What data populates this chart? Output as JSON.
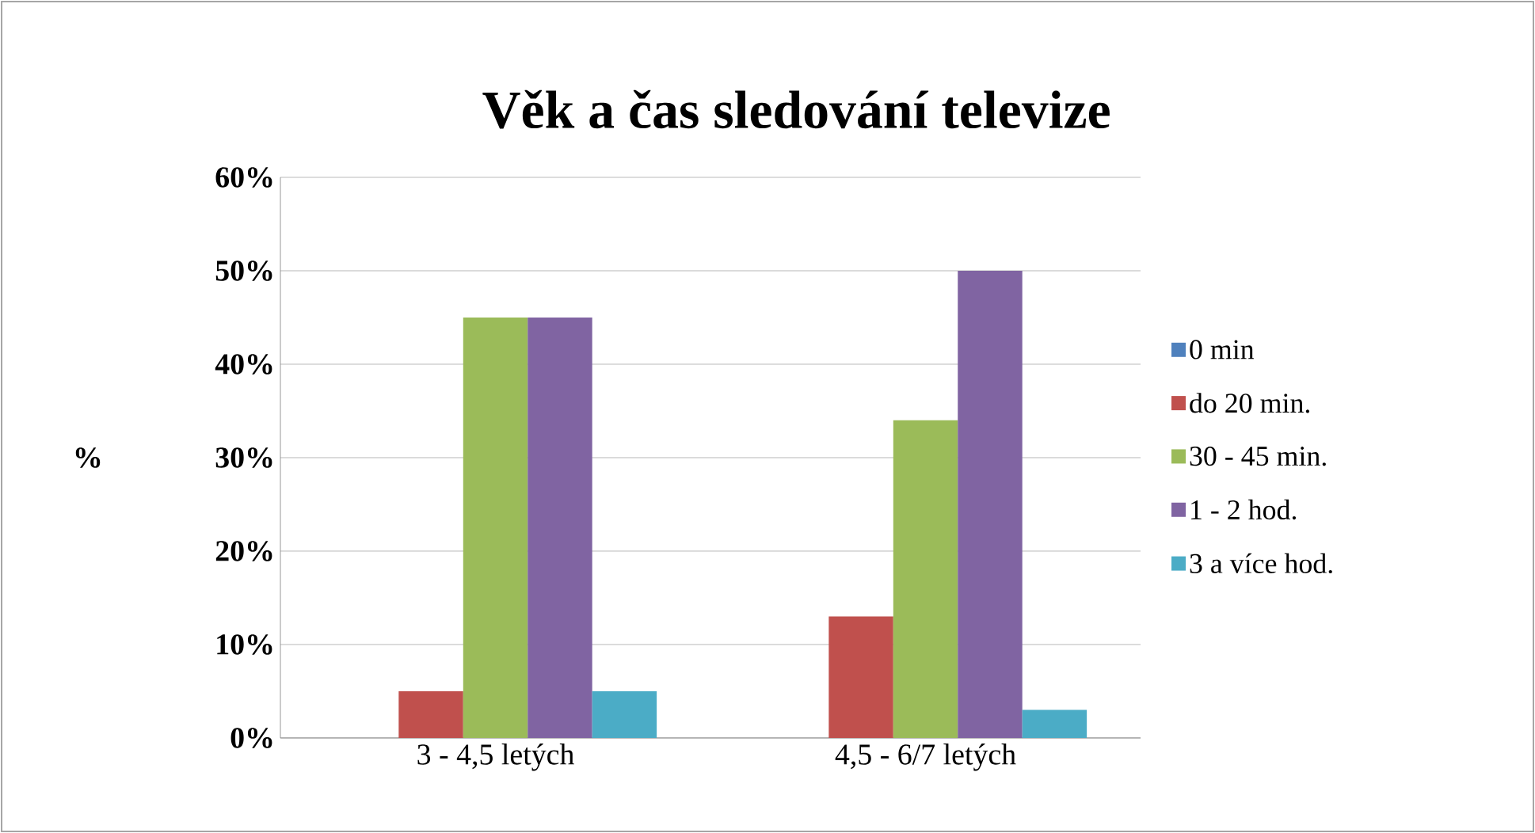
{
  "chart_data": {
    "type": "bar",
    "title": "Věk a čas sledování televize",
    "ylabel": "%",
    "categories": [
      "3 - 4,5 letých",
      "4,5 - 6/7 letých"
    ],
    "series": [
      {
        "name": "0 min",
        "color": "#4f81bd",
        "values": [
          0,
          0
        ]
      },
      {
        "name": "do 20 min.",
        "color": "#c0504d",
        "values": [
          5,
          13
        ]
      },
      {
        "name": "30 - 45 min.",
        "color": "#9bbb59",
        "values": [
          45,
          34
        ]
      },
      {
        "name": "1 - 2 hod.",
        "color": "#8064a2",
        "values": [
          45,
          50
        ]
      },
      {
        "name": "3 a více hod.",
        "color": "#4bacc6",
        "values": [
          5,
          3
        ]
      }
    ],
    "ylim": [
      0,
      60
    ],
    "yticks": [
      {
        "value": 0,
        "label": "0%"
      },
      {
        "value": 10,
        "label": "10%"
      },
      {
        "value": 20,
        "label": "20%"
      },
      {
        "value": 30,
        "label": "30%"
      },
      {
        "value": 40,
        "label": "40%"
      },
      {
        "value": 50,
        "label": "50%"
      },
      {
        "value": 60,
        "label": "60%"
      }
    ],
    "grid": "y",
    "legend": "right"
  }
}
